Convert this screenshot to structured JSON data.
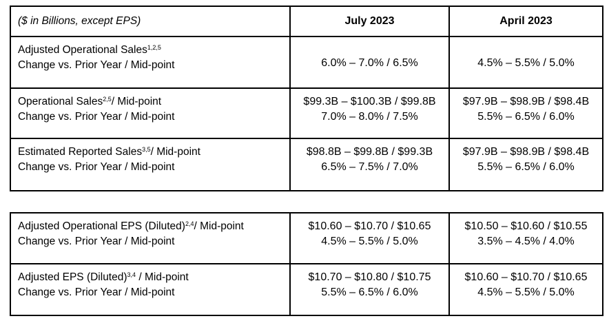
{
  "colors": {
    "border": "#000000",
    "text": "#000000",
    "background": "#ffffff"
  },
  "table1": {
    "header": {
      "caption": "($ in Billions, except EPS)",
      "col_july": "July 2023",
      "col_april": "April 2023"
    },
    "rows": [
      {
        "label_main": "Adjusted Operational Sales",
        "label_sup": "1,2,5",
        "label_suffix": "",
        "label_line2": "Change vs. Prior Year / Mid-point",
        "july": [
          "6.0% – 7.0% / 6.5%"
        ],
        "april": [
          "4.5% – 5.5% / 5.0%"
        ]
      },
      {
        "label_main": "Operational Sales",
        "label_sup": "2,5",
        "label_suffix": "/ Mid-point",
        "label_line2": "Change vs. Prior Year / Mid-point",
        "july": [
          "$99.3B – $100.3B / $99.8B",
          "7.0% – 8.0% / 7.5%"
        ],
        "april": [
          "$97.9B – $98.9B / $98.4B",
          "5.5% – 6.5% / 6.0%"
        ]
      },
      {
        "label_main": "Estimated Reported Sales",
        "label_sup": "3,5",
        "label_suffix": "/ Mid-point",
        "label_line2": "Change vs. Prior Year / Mid-point",
        "july": [
          "$98.8B – $99.8B / $99.3B",
          "6.5% – 7.5% / 7.0%"
        ],
        "april": [
          "$97.9B – $98.9B / $98.4B",
          "5.5% – 6.5% / 6.0%"
        ]
      }
    ]
  },
  "table2": {
    "rows": [
      {
        "label_main": "Adjusted Operational EPS (Diluted)",
        "label_sup": "2,4",
        "label_suffix": "/ Mid-point",
        "label_line2": "Change vs. Prior Year / Mid-point",
        "july": [
          "$10.60 – $10.70 / $10.65",
          "4.5% – 5.5% / 5.0%"
        ],
        "april": [
          "$10.50 – $10.60 / $10.55",
          "3.5% – 4.5% / 4.0%"
        ]
      },
      {
        "label_main": "Adjusted EPS (Diluted)",
        "label_sup": "3,4",
        "label_suffix": " / Mid-point",
        "label_line2": "Change vs. Prior Year / Mid-point",
        "july": [
          "$10.70 – $10.80 / $10.75",
          "5.5% – 6.5% / 6.0%"
        ],
        "april": [
          "$10.60 – $10.70 / $10.65",
          "4.5% – 5.5% / 5.0%"
        ]
      }
    ]
  }
}
